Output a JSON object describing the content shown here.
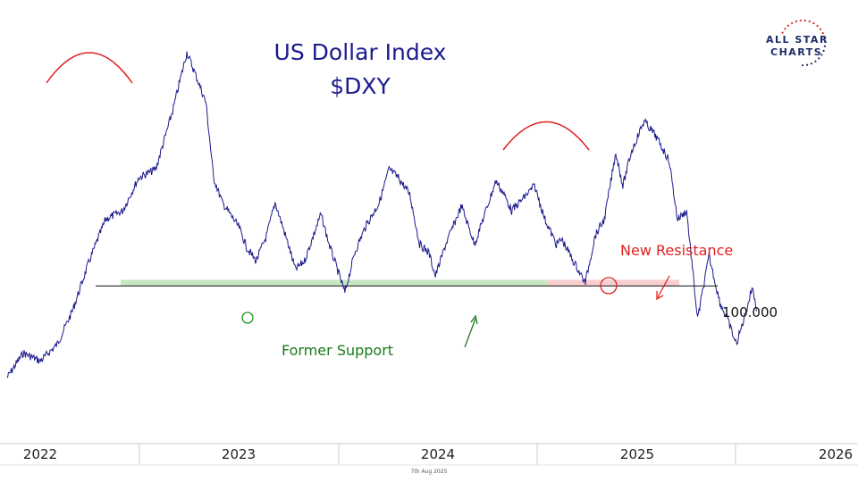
{
  "chart_data": {
    "type": "line",
    "title": "US Dollar Index",
    "subtitle": "$DXY",
    "series": [
      {
        "color": "#1a1a8c",
        "points": [
          [
            "2021-11-01",
            94.5
          ],
          [
            "2021-12-01",
            96.0
          ],
          [
            "2022-01-01",
            95.5
          ],
          [
            "2022-02-01",
            96.5
          ],
          [
            "2022-03-01",
            98.5
          ],
          [
            "2022-04-01",
            101.5
          ],
          [
            "2022-05-01",
            104.0
          ],
          [
            "2022-06-01",
            104.5
          ],
          [
            "2022-07-01",
            106.5
          ],
          [
            "2022-08-01",
            107.0
          ],
          [
            "2022-09-01",
            110.5
          ],
          [
            "2022-09-27",
            114.0
          ],
          [
            "2022-10-15",
            112.5
          ],
          [
            "2022-11-01",
            111.0
          ],
          [
            "2022-11-15",
            106.5
          ],
          [
            "2022-12-01",
            105.0
          ],
          [
            "2023-01-01",
            103.5
          ],
          [
            "2023-01-15",
            102.3
          ],
          [
            "2023-02-01",
            101.5
          ],
          [
            "2023-02-20",
            103.0
          ],
          [
            "2023-03-08",
            105.0
          ],
          [
            "2023-04-01",
            102.5
          ],
          [
            "2023-04-14",
            101.0
          ],
          [
            "2023-05-01",
            101.5
          ],
          [
            "2023-05-31",
            104.3
          ],
          [
            "2023-06-15",
            102.5
          ],
          [
            "2023-07-14",
            99.6
          ],
          [
            "2023-08-01",
            102.0
          ],
          [
            "2023-08-20",
            103.5
          ],
          [
            "2023-09-15",
            105.0
          ],
          [
            "2023-10-03",
            107.0
          ],
          [
            "2023-10-20",
            106.5
          ],
          [
            "2023-11-10",
            105.5
          ],
          [
            "2023-11-28",
            102.5
          ],
          [
            "2023-12-15",
            102.0
          ],
          [
            "2023-12-27",
            100.6
          ],
          [
            "2024-01-15",
            102.5
          ],
          [
            "2024-02-13",
            104.8
          ],
          [
            "2024-03-08",
            102.5
          ],
          [
            "2024-04-16",
            106.3
          ],
          [
            "2024-05-01",
            105.5
          ],
          [
            "2024-05-15",
            104.5
          ],
          [
            "2024-06-26",
            106.0
          ],
          [
            "2024-07-15",
            104.0
          ],
          [
            "2024-08-05",
            102.5
          ],
          [
            "2024-08-15",
            102.8
          ],
          [
            "2024-09-05",
            101.5
          ],
          [
            "2024-09-27",
            100.2
          ],
          [
            "2024-10-15",
            103.0
          ],
          [
            "2024-11-01",
            104.0
          ],
          [
            "2024-11-22",
            108.0
          ],
          [
            "2024-12-05",
            106.0
          ],
          [
            "2024-12-20",
            108.0
          ],
          [
            "2025-01-13",
            109.9
          ],
          [
            "2025-02-03",
            109.0
          ],
          [
            "2025-02-28",
            107.5
          ],
          [
            "2025-03-15",
            104.0
          ],
          [
            "2025-04-01",
            104.5
          ],
          [
            "2025-04-21",
            98.0
          ],
          [
            "2025-05-12",
            101.8
          ],
          [
            "2025-06-01",
            99.0
          ],
          [
            "2025-06-15",
            98.0
          ],
          [
            "2025-07-01",
            96.5
          ],
          [
            "2025-07-15",
            98.0
          ],
          [
            "2025-07-31",
            100.0
          ],
          [
            "2025-08-07",
            98.5
          ]
        ]
      }
    ],
    "x_ticks": [
      "2022",
      "2023",
      "2024",
      "2025",
      "2026"
    ],
    "xlim": [
      "2022-01-01",
      "2026-01-01"
    ],
    "ylim": [
      92,
      115
    ],
    "horizontal_line": {
      "value": 100.0,
      "label": "100.000"
    },
    "annotations": {
      "former_support": "Former Support",
      "new_resistance": "New Resistance"
    },
    "grid": false,
    "footer": "7th Aug 2025"
  },
  "logo": {
    "line1": "ALL STAR",
    "line2": "CHARTS"
  }
}
